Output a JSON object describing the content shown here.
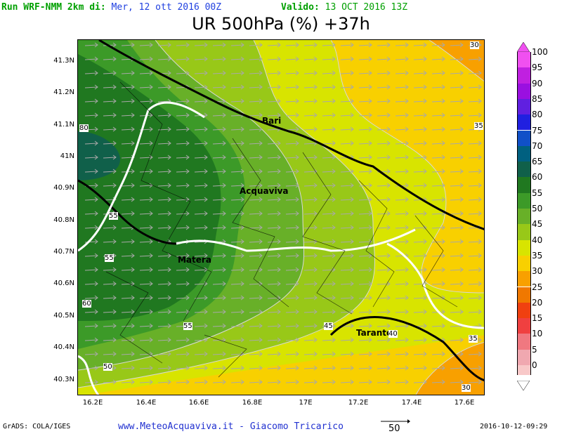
{
  "header": {
    "run_label": "Run WRF-NMM 2km di:",
    "run_date": "Mer, 12 ott 2016 00Z",
    "valid_label": "Valido:",
    "valid_date": "13 OCT 2016 13Z",
    "run_label_color": "#00a000",
    "run_date_color": "#2040e0",
    "valid_color": "#00a000"
  },
  "title": "UR 500hPa (%) +37h",
  "axes": {
    "y_labels": [
      "41.3N",
      "41.2N",
      "41.1N",
      "41N",
      "40.9N",
      "40.8N",
      "40.7N",
      "40.6N",
      "40.5N",
      "40.4N",
      "40.3N"
    ],
    "x_labels": [
      "16.2E",
      "16.4E",
      "16.6E",
      "16.8E",
      "17E",
      "17.2E",
      "17.4E",
      "17.6E"
    ]
  },
  "cities": {
    "bari": "Bari",
    "acquaviva": "Acquaviva",
    "matera": "Matera",
    "taranto": "Taranto"
  },
  "contour_labels": {
    "c30_top": "30",
    "c35_right": "35",
    "c80": "80",
    "c55_a": "55",
    "c55_b": "55",
    "c60": "60",
    "c55_c": "55",
    "c45": "45",
    "c40": "40",
    "c35_b": "35",
    "c50": "50",
    "c30_b": "30"
  },
  "legend": {
    "items": [
      {
        "label": "100",
        "color": "#f050f0"
      },
      {
        "label": "95",
        "color": "#c020e0"
      },
      {
        "label": "90",
        "color": "#9a10e0"
      },
      {
        "label": "85",
        "color": "#6020e0"
      },
      {
        "label": "80",
        "color": "#2020e0"
      },
      {
        "label": "75",
        "color": "#1050c8"
      },
      {
        "label": "70",
        "color": "#006080"
      },
      {
        "label": "65",
        "color": "#10604a"
      },
      {
        "label": "60",
        "color": "#207820"
      },
      {
        "label": "55",
        "color": "#3c9a28"
      },
      {
        "label": "50",
        "color": "#68b028"
      },
      {
        "label": "45",
        "color": "#98c818"
      },
      {
        "label": "40",
        "color": "#d8e400"
      },
      {
        "label": "35",
        "color": "#f8d000"
      },
      {
        "label": "30",
        "color": "#f8a000"
      },
      {
        "label": "25",
        "color": "#f07800"
      },
      {
        "label": "20",
        "color": "#f04010"
      },
      {
        "label": "15",
        "color": "#f04040"
      },
      {
        "label": "10",
        "color": "#f07880"
      },
      {
        "label": "5",
        "color": "#f0a8b0"
      },
      {
        "label": "0",
        "color": "#f8c8c8"
      }
    ]
  },
  "footer": {
    "grads": "GrADS: COLA/IGES",
    "site": "www.MeteoAcquaviva.it - Giacomo Tricarico",
    "vector_scale": "50",
    "timestamp": "2016-10-12-09:29"
  }
}
